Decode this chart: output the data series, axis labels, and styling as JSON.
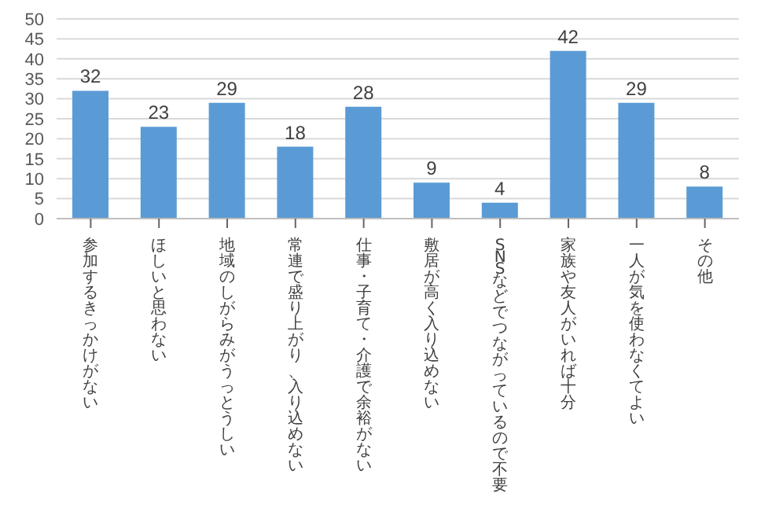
{
  "chart_data": {
    "type": "bar",
    "categories": [
      "参加するきっかけがない",
      "ほしいと思わない",
      "地域のしがらみがうっとうしい",
      "常連で盛り上がり、入り込めない",
      "仕事・子育て・介護で余裕がない",
      "敷居が高く入り込めない",
      "SNSなどでつながっているので不要",
      "家族や友人がいれば十分",
      "一人が気を使わなくてよい",
      "その他"
    ],
    "values": [
      32,
      23,
      29,
      18,
      28,
      9,
      4,
      42,
      29,
      8
    ],
    "color": "#5b9bd5",
    "ylim": [
      0,
      50
    ],
    "yticks": [
      0,
      5,
      10,
      15,
      20,
      25,
      30,
      35,
      40,
      45,
      50
    ],
    "grid": "y",
    "data_labels": true,
    "legend": false
  }
}
